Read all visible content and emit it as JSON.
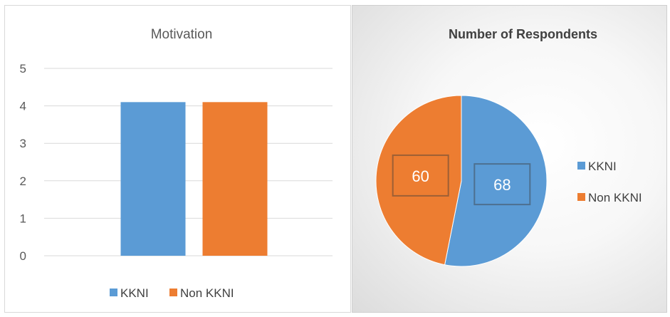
{
  "chart_data": [
    {
      "type": "bar",
      "title": "Motivation",
      "categories": [
        ""
      ],
      "series": [
        {
          "name": "KKNI",
          "values": [
            4.1
          ],
          "color": "#5B9BD5"
        },
        {
          "name": "Non KKNI",
          "values": [
            4.1
          ],
          "color": "#ED7D31"
        }
      ],
      "ylim": [
        0,
        5
      ],
      "yticks": [
        "0",
        "1",
        "2",
        "3",
        "4",
        "5"
      ],
      "grid": true,
      "legend": "bottom"
    },
    {
      "type": "pie",
      "title": "Number of Respondents",
      "slices": [
        {
          "name": "KKNI",
          "value": 68,
          "label": "68",
          "color": "#5B9BD5"
        },
        {
          "name": "Non KKNI",
          "value": 60,
          "label": "60",
          "color": "#ED7D31"
        }
      ],
      "legend": "right"
    }
  ]
}
